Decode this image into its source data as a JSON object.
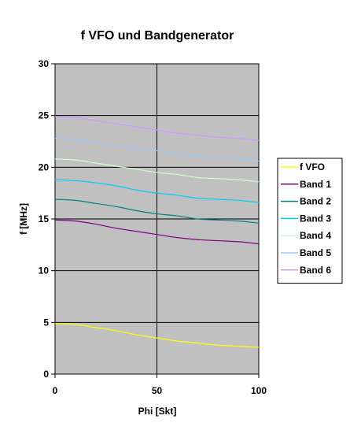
{
  "chart_data": {
    "type": "line",
    "title": "f VFO und Bandgenerator",
    "xlabel": "Phi [Skt]",
    "ylabel": "f [MHz]",
    "xlim": [
      0,
      100
    ],
    "ylim": [
      0,
      30
    ],
    "xticks": [
      "0",
      "50",
      "100"
    ],
    "yticks": [
      "0",
      "5",
      "10",
      "15",
      "20",
      "25",
      "30"
    ],
    "grid": true,
    "plot_background": "#c0c0c0",
    "legend_position": "right",
    "x": [
      0,
      10,
      20,
      30,
      40,
      50,
      60,
      70,
      80,
      90,
      100
    ],
    "series": [
      {
        "name": "f VFO",
        "color": "#ffff00",
        "values": [
          4.9,
          4.8,
          4.5,
          4.2,
          3.8,
          3.5,
          3.2,
          3.0,
          2.8,
          2.7,
          2.6
        ]
      },
      {
        "name": "Band 1",
        "color": "#800080",
        "values": [
          14.9,
          14.8,
          14.5,
          14.1,
          13.8,
          13.5,
          13.2,
          13.0,
          12.9,
          12.8,
          12.6
        ]
      },
      {
        "name": "Band 2",
        "color": "#008080",
        "values": [
          16.9,
          16.8,
          16.5,
          16.2,
          15.8,
          15.5,
          15.3,
          15.0,
          14.9,
          14.8,
          14.6
        ]
      },
      {
        "name": "Band 3",
        "color": "#00ccff",
        "values": [
          18.8,
          18.7,
          18.5,
          18.2,
          17.8,
          17.5,
          17.3,
          17.0,
          16.9,
          16.8,
          16.6
        ]
      },
      {
        "name": "Band 4",
        "color": "#ccffcc",
        "values": [
          20.8,
          20.7,
          20.4,
          20.1,
          19.8,
          19.5,
          19.3,
          19.0,
          18.9,
          18.8,
          18.6
        ]
      },
      {
        "name": "Band 5",
        "color": "#99ccff",
        "values": [
          22.8,
          22.7,
          22.4,
          22.1,
          21.8,
          21.6,
          21.4,
          21.1,
          20.9,
          20.8,
          20.6
        ]
      },
      {
        "name": "Band 6",
        "color": "#cc99ff",
        "values": [
          24.9,
          24.8,
          24.5,
          24.2,
          23.9,
          23.6,
          23.3,
          23.1,
          22.9,
          22.8,
          22.6
        ]
      }
    ]
  }
}
